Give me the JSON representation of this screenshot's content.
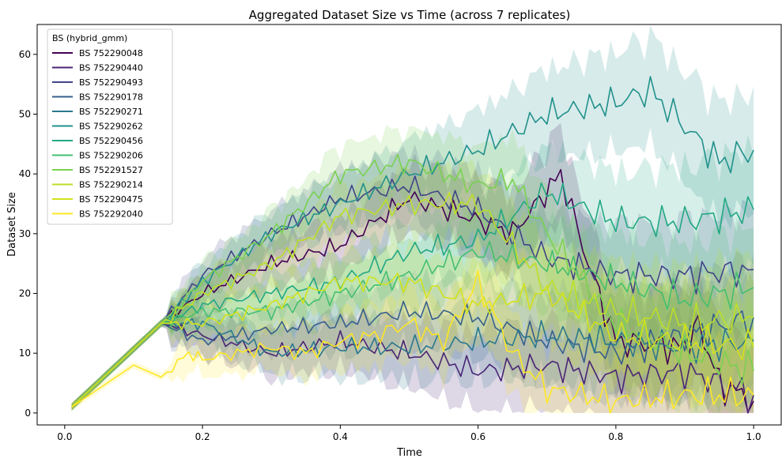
{
  "chart_data": {
    "type": "line",
    "title": "Aggregated Dataset Size vs Time (across 7 replicates)",
    "xlabel": "Time",
    "ylabel": "Dataset Size",
    "xlim": [
      -0.04,
      1.04
    ],
    "ylim": [
      -2,
      65
    ],
    "xticks": [
      0.0,
      0.2,
      0.4,
      0.6,
      0.8,
      1.0
    ],
    "xtick_labels": [
      "0.0",
      "0.2",
      "0.4",
      "0.6",
      "0.8",
      "1.0"
    ],
    "yticks": [
      0,
      10,
      20,
      30,
      40,
      50,
      60
    ],
    "ytick_labels": [
      "0",
      "10",
      "20",
      "30",
      "40",
      "50",
      "60"
    ],
    "grid": false,
    "legend": {
      "title": "BS (hybrid_gmm)",
      "placement": "top-left"
    },
    "bands": "shaded region around each series (spread across replicates)",
    "series": [
      {
        "name": "BS 752290048",
        "color": "#440154",
        "x": [
          0.01,
          0.14,
          0.2,
          0.3,
          0.4,
          0.5,
          0.58,
          0.65,
          0.72,
          0.76,
          0.8,
          0.9,
          0.92,
          0.95,
          1.0
        ],
        "y": [
          1,
          15,
          20,
          25,
          28,
          36,
          33,
          30,
          40,
          25,
          12,
          11,
          15,
          5,
          2
        ]
      },
      {
        "name": "BS 752290440",
        "color": "#482475",
        "x": [
          0.01,
          0.14,
          0.2,
          0.3,
          0.4,
          0.5,
          0.6,
          0.7,
          0.8,
          0.9,
          1.0
        ],
        "y": [
          1,
          15,
          13,
          10,
          12,
          10,
          7,
          8,
          6,
          7,
          3
        ]
      },
      {
        "name": "BS 752290493",
        "color": "#414487",
        "x": [
          0.01,
          0.14,
          0.2,
          0.3,
          0.4,
          0.5,
          0.6,
          0.7,
          0.8,
          0.9,
          1.0
        ],
        "y": [
          1,
          15,
          23,
          30,
          36,
          38,
          34,
          26,
          23,
          23,
          24
        ]
      },
      {
        "name": "BS 752290178",
        "color": "#355f8d",
        "x": [
          0.01,
          0.14,
          0.2,
          0.3,
          0.4,
          0.5,
          0.6,
          0.7,
          0.8,
          0.9,
          1.0
        ],
        "y": [
          1,
          15,
          12,
          14,
          15,
          17,
          16,
          12,
          10,
          13,
          16
        ]
      },
      {
        "name": "BS 752290271",
        "color": "#2a788e",
        "x": [
          0.01,
          0.14,
          0.2,
          0.3,
          0.4,
          0.5,
          0.6,
          0.7,
          0.8,
          0.9,
          1.0
        ],
        "y": [
          1,
          15,
          15,
          10,
          11,
          11,
          12,
          13,
          12,
          11,
          12
        ]
      },
      {
        "name": "BS 752290262",
        "color": "#21918c",
        "x": [
          0.01,
          0.14,
          0.2,
          0.3,
          0.4,
          0.5,
          0.6,
          0.7,
          0.8,
          0.85,
          0.9,
          0.95,
          1.0
        ],
        "y": [
          1,
          15,
          22,
          30,
          35,
          40,
          44,
          50,
          52,
          54,
          48,
          42,
          44
        ]
      },
      {
        "name": "BS 752290456",
        "color": "#22a884",
        "x": [
          0.01,
          0.14,
          0.2,
          0.3,
          0.4,
          0.5,
          0.6,
          0.7,
          0.8,
          0.9,
          1.0
        ],
        "y": [
          1,
          15,
          18,
          20,
          22,
          27,
          29,
          37,
          32,
          32,
          34
        ]
      },
      {
        "name": "BS 752290206",
        "color": "#44bf70",
        "x": [
          0.01,
          0.14,
          0.2,
          0.3,
          0.4,
          0.5,
          0.6,
          0.7,
          0.8,
          0.9,
          1.0
        ],
        "y": [
          1,
          15,
          17,
          17,
          20,
          23,
          27,
          25,
          22,
          19,
          21
        ]
      },
      {
        "name": "BS 752291527",
        "color": "#7ad151",
        "x": [
          0.01,
          0.14,
          0.2,
          0.3,
          0.4,
          0.5,
          0.6,
          0.65,
          0.7,
          0.8,
          0.9,
          1.0
        ],
        "y": [
          1,
          15,
          22,
          30,
          40,
          42,
          38,
          39,
          30,
          15,
          10,
          7
        ]
      },
      {
        "name": "BS 752290214",
        "color": "#bddf26",
        "x": [
          0.01,
          0.14,
          0.2,
          0.3,
          0.4,
          0.5,
          0.6,
          0.7,
          0.8,
          0.9,
          1.0
        ],
        "y": [
          1,
          15,
          20,
          25,
          33,
          35,
          35,
          21,
          17,
          15,
          16
        ]
      },
      {
        "name": "BS 752290475",
        "color": "#d2e21b",
        "x": [
          0.01,
          0.14,
          0.2,
          0.3,
          0.4,
          0.5,
          0.6,
          0.7,
          0.8,
          0.9,
          1.0
        ],
        "y": [
          1,
          15,
          15,
          18,
          22,
          22,
          18,
          20,
          13,
          12,
          11
        ]
      },
      {
        "name": "BS 752292040",
        "color": "#fde725",
        "x": [
          0.01,
          0.1,
          0.14,
          0.18,
          0.2,
          0.3,
          0.35,
          0.4,
          0.45,
          0.5,
          0.55,
          0.6,
          0.65,
          0.7,
          0.75,
          0.8,
          0.9,
          1.0
        ],
        "y": [
          1,
          8,
          6,
          10,
          9,
          11,
          10,
          12,
          13,
          15,
          12,
          22,
          10,
          4,
          3,
          2,
          3,
          3
        ]
      }
    ]
  }
}
